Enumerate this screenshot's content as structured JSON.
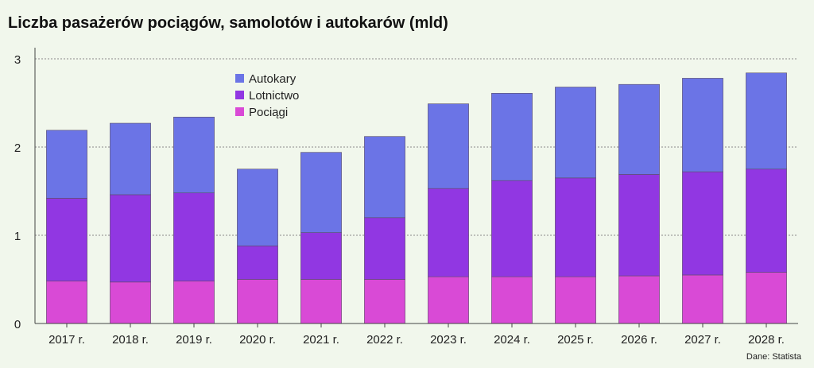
{
  "chart_data": {
    "type": "bar",
    "stacked": true,
    "title": "Liczba pasażerów pociągów, samolotów i autokarów (mld)",
    "source": "Dane: Statista",
    "xlabel": "",
    "ylabel": "",
    "categories": [
      "2017 r.",
      "2018 r.",
      "2019 r.",
      "2020 r.",
      "2021 r.",
      "2022 r.",
      "2023 r.",
      "2024 r.",
      "2025 r.",
      "2026 r.",
      "2027 r.",
      "2028 r."
    ],
    "series": [
      {
        "name": "Pociągi",
        "color": "#d94ad6",
        "values": [
          0.48,
          0.47,
          0.48,
          0.5,
          0.5,
          0.5,
          0.53,
          0.53,
          0.53,
          0.54,
          0.55,
          0.58
        ]
      },
      {
        "name": "Lotnictwo",
        "color": "#9137e2",
        "values": [
          0.94,
          0.99,
          1.0,
          0.38,
          0.53,
          0.7,
          1.0,
          1.09,
          1.12,
          1.15,
          1.17,
          1.17
        ]
      },
      {
        "name": "Autokary",
        "color": "#6b74e6",
        "values": [
          0.77,
          0.81,
          0.86,
          0.87,
          0.91,
          0.92,
          0.96,
          0.99,
          1.03,
          1.02,
          1.06,
          1.09
        ]
      }
    ],
    "legend_order": [
      "Autokary",
      "Lotnictwo",
      "Pociągi"
    ],
    "legend_position": "top-left",
    "ylim": [
      0,
      3
    ],
    "yticks": [
      0,
      1,
      2,
      3
    ],
    "grid": "horizontal-dashed"
  }
}
